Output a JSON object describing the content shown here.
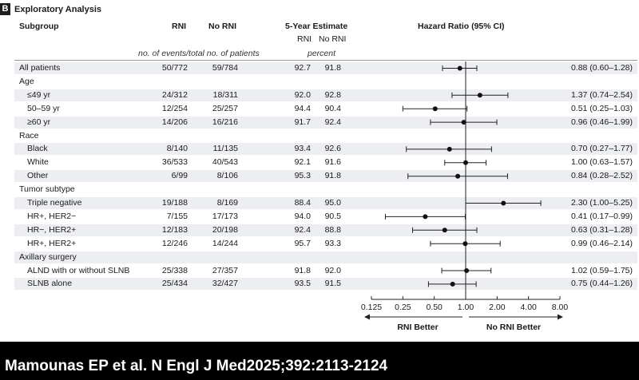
{
  "panel": {
    "label": "B",
    "title": "Exploratory Analysis"
  },
  "headers": {
    "subgroup": "Subgroup",
    "rni": "RNI",
    "no_rni": "No RNI",
    "estimate": "5-Year Estimate",
    "estimate_rni": "RNI",
    "estimate_no_rni": "No RNI",
    "hazard_ratio": "Hazard Ratio (95% CI)",
    "events_note": "no. of events/total no. of patients",
    "percent_note": "percent"
  },
  "rows": [
    {
      "kind": "data",
      "indent": 0,
      "label": "All patients",
      "rni": "50/772",
      "no_rni": "59/784",
      "est_rni": "92.7",
      "est_no_rni": "91.8",
      "hr_text": "0.88 (0.60–1.28)"
    },
    {
      "kind": "group",
      "indent": 0,
      "label": "Age"
    },
    {
      "kind": "data",
      "indent": 1,
      "label": "≤49 yr",
      "rni": "24/312",
      "no_rni": "18/311",
      "est_rni": "92.0",
      "est_no_rni": "92.8",
      "hr_text": "1.37 (0.74–2.54)"
    },
    {
      "kind": "data",
      "indent": 1,
      "label": "50–59 yr",
      "rni": "12/254",
      "no_rni": "25/257",
      "est_rni": "94.4",
      "est_no_rni": "90.4",
      "hr_text": "0.51 (0.25–1.03)"
    },
    {
      "kind": "data",
      "indent": 1,
      "label": "≥60 yr",
      "rni": "14/206",
      "no_rni": "16/216",
      "est_rni": "91.7",
      "est_no_rni": "92.4",
      "hr_text": "0.96 (0.46–1.99)"
    },
    {
      "kind": "group",
      "indent": 0,
      "label": "Race"
    },
    {
      "kind": "data",
      "indent": 1,
      "label": "Black",
      "rni": "8/140",
      "no_rni": "11/135",
      "est_rni": "93.4",
      "est_no_rni": "92.6",
      "hr_text": "0.70 (0.27–1.77)"
    },
    {
      "kind": "data",
      "indent": 1,
      "label": "White",
      "rni": "36/533",
      "no_rni": "40/543",
      "est_rni": "92.1",
      "est_no_rni": "91.6",
      "hr_text": "1.00 (0.63–1.57)"
    },
    {
      "kind": "data",
      "indent": 1,
      "label": "Other",
      "rni": "6/99",
      "no_rni": "8/106",
      "est_rni": "95.3",
      "est_no_rni": "91.8",
      "hr_text": "0.84 (0.28–2.52)"
    },
    {
      "kind": "group",
      "indent": 0,
      "label": "Tumor subtype"
    },
    {
      "kind": "data",
      "indent": 1,
      "label": "Triple negative",
      "rni": "19/188",
      "no_rni": "8/169",
      "est_rni": "88.4",
      "est_no_rni": "95.0",
      "hr_text": "2.30 (1.00–5.25)"
    },
    {
      "kind": "data",
      "indent": 1,
      "label": "HR+, HER2−",
      "rni": "7/155",
      "no_rni": "17/173",
      "est_rni": "94.0",
      "est_no_rni": "90.5",
      "hr_text": "0.41 (0.17–0.99)"
    },
    {
      "kind": "data",
      "indent": 1,
      "label": "HR−, HER2+",
      "rni": "12/183",
      "no_rni": "20/198",
      "est_rni": "92.4",
      "est_no_rni": "88.8",
      "hr_text": "0.63 (0.31–1.28)"
    },
    {
      "kind": "data",
      "indent": 1,
      "label": "HR+, HER2+",
      "rni": "12/246",
      "no_rni": "14/244",
      "est_rni": "95.7",
      "est_no_rni": "93.3",
      "hr_text": "0.99 (0.46–2.14)"
    },
    {
      "kind": "group",
      "indent": 0,
      "label": "Axillary surgery"
    },
    {
      "kind": "data",
      "indent": 1,
      "label": "ALND with or without SLNB",
      "rni": "25/338",
      "no_rni": "27/357",
      "est_rni": "91.8",
      "est_no_rni": "92.0",
      "hr_text": "1.02 (0.59–1.75)"
    },
    {
      "kind": "data",
      "indent": 1,
      "label": "SLNB alone",
      "rni": "25/434",
      "no_rni": "32/427",
      "est_rni": "93.5",
      "est_no_rni": "91.5",
      "hr_text": "0.75 (0.44–1.26)"
    }
  ],
  "chart_data": {
    "type": "forest",
    "title": "Hazard Ratio (95% CI)",
    "xscale": "log2",
    "xlim": [
      0.125,
      8.0
    ],
    "ticks": [
      0.125,
      0.25,
      0.5,
      1.0,
      2.0,
      4.0,
      8.0
    ],
    "tick_labels": [
      "0.125",
      "0.25",
      "0.50",
      "1.00",
      "2.00",
      "4.00",
      "8.00"
    ],
    "reference_line": 1.0,
    "left_label": "RNI Better",
    "right_label": "No RNI Better",
    "series": [
      {
        "label": "All patients",
        "hr": 0.88,
        "lo": 0.6,
        "hi": 1.28
      },
      {
        "label": "≤49 yr",
        "hr": 1.37,
        "lo": 0.74,
        "hi": 2.54
      },
      {
        "label": "50–59 yr",
        "hr": 0.51,
        "lo": 0.25,
        "hi": 1.03
      },
      {
        "label": "≥60 yr",
        "hr": 0.96,
        "lo": 0.46,
        "hi": 1.99
      },
      {
        "label": "Black",
        "hr": 0.7,
        "lo": 0.27,
        "hi": 1.77
      },
      {
        "label": "White",
        "hr": 1.0,
        "lo": 0.63,
        "hi": 1.57
      },
      {
        "label": "Other",
        "hr": 0.84,
        "lo": 0.28,
        "hi": 2.52
      },
      {
        "label": "Triple negative",
        "hr": 2.3,
        "lo": 1.0,
        "hi": 5.25
      },
      {
        "label": "HR+, HER2−",
        "hr": 0.41,
        "lo": 0.17,
        "hi": 0.99
      },
      {
        "label": "HR−, HER2+",
        "hr": 0.63,
        "lo": 0.31,
        "hi": 1.28
      },
      {
        "label": "HR+, HER2+",
        "hr": 0.99,
        "lo": 0.46,
        "hi": 2.14
      },
      {
        "label": "ALND with or without SLNB",
        "hr": 1.02,
        "lo": 0.59,
        "hi": 1.75
      },
      {
        "label": "SLNB alone",
        "hr": 0.75,
        "lo": 0.44,
        "hi": 1.26
      }
    ]
  },
  "citation": "Mamounas EP et al. N Engl J Med2025;392:2113-2124"
}
